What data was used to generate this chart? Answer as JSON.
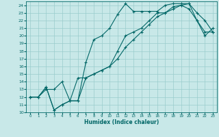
{
  "xlabel": "Humidex (Indice chaleur)",
  "bg_color": "#c8e8e8",
  "grid_color": "#99cccc",
  "line_color": "#006666",
  "xlim": [
    -0.5,
    23.5
  ],
  "ylim": [
    10,
    24.5
  ],
  "yticks": [
    10,
    11,
    12,
    13,
    14,
    15,
    16,
    17,
    18,
    19,
    20,
    21,
    22,
    23,
    24
  ],
  "xticks": [
    0,
    1,
    2,
    3,
    4,
    5,
    6,
    7,
    8,
    9,
    10,
    11,
    12,
    13,
    14,
    15,
    16,
    17,
    18,
    19,
    20,
    21,
    22,
    23
  ],
  "line1_x": [
    0,
    1,
    2,
    3,
    4,
    5,
    6,
    7,
    8,
    9,
    10,
    11,
    12,
    13,
    14,
    15,
    16,
    17,
    18,
    19,
    20,
    21,
    22,
    23
  ],
  "line1_y": [
    12,
    12,
    13,
    13,
    14,
    11.5,
    11.5,
    16.5,
    19.5,
    20,
    21,
    22.8,
    24.2,
    23.2,
    23.2,
    23.2,
    23.2,
    24,
    24.2,
    24.2,
    24.2,
    23,
    22,
    20.5
  ],
  "line2_x": [
    0,
    1,
    2,
    3,
    4,
    5,
    6,
    7,
    8,
    9,
    10,
    11,
    12,
    13,
    14,
    15,
    16,
    17,
    18,
    19,
    20,
    21,
    22,
    23
  ],
  "line2_y": [
    12,
    12,
    13.3,
    10.3,
    11,
    11.5,
    14.5,
    14.5,
    15,
    15.5,
    16,
    18,
    20,
    20.5,
    21,
    22,
    23,
    23,
    23.8,
    24,
    24.2,
    22,
    20,
    21
  ],
  "line3_x": [
    0,
    1,
    2,
    3,
    4,
    5,
    6,
    7,
    8,
    9,
    10,
    11,
    12,
    13,
    14,
    15,
    16,
    17,
    18,
    19,
    20,
    21,
    22,
    23
  ],
  "line3_y": [
    12,
    12,
    13.3,
    10.3,
    11,
    11.5,
    11.5,
    14.5,
    15,
    15.5,
    16,
    17,
    18.5,
    19.5,
    20.5,
    21.5,
    22.5,
    23,
    23.5,
    24,
    23.5,
    22,
    20.5,
    20.5
  ]
}
